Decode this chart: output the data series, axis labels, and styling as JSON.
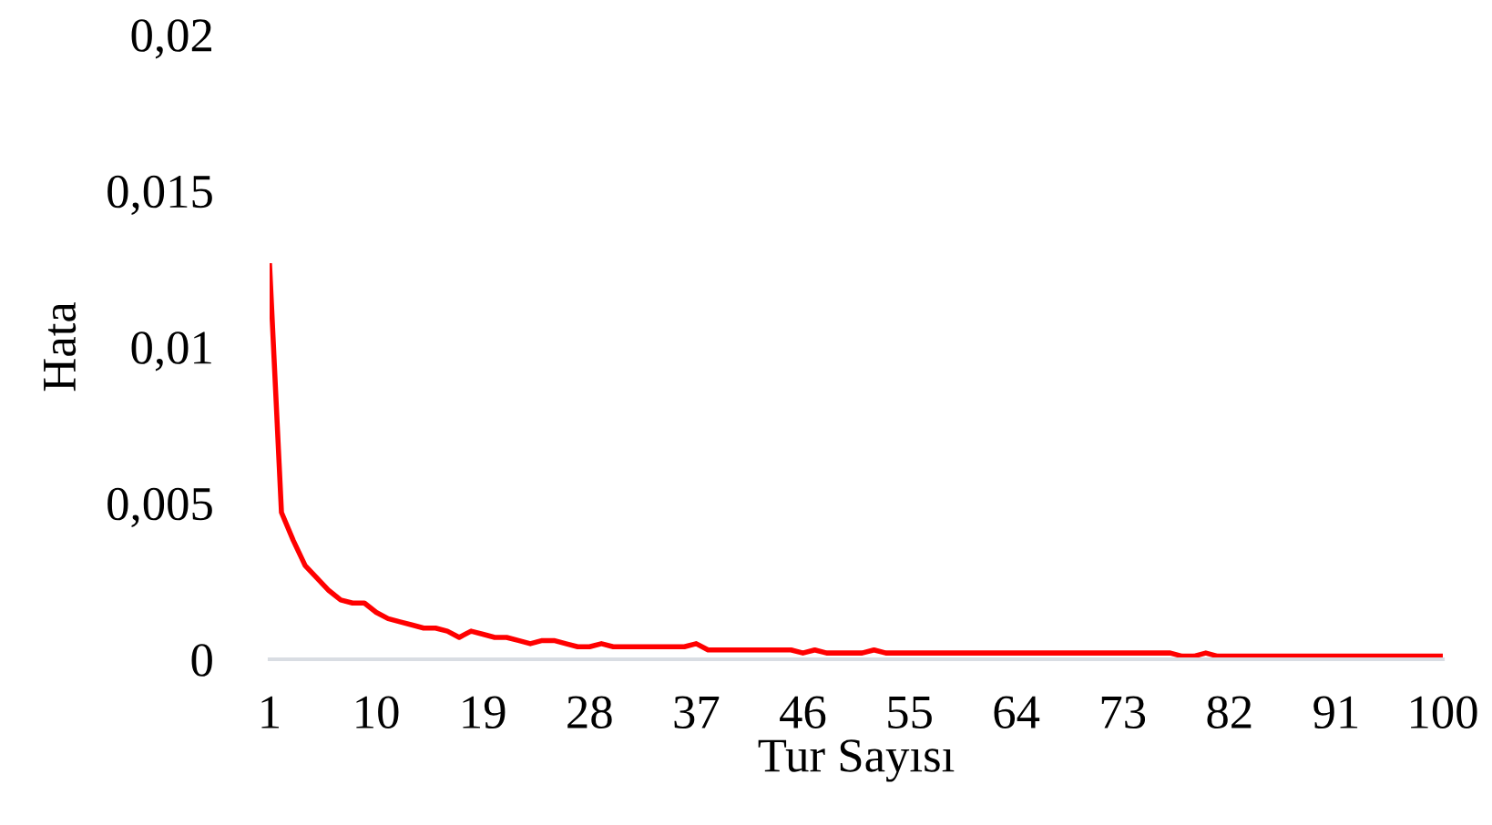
{
  "chart_data": {
    "type": "line",
    "xlabel": "Tur Sayısı",
    "ylabel": "Hata",
    "categories": [
      "1",
      null,
      null,
      null,
      null,
      null,
      null,
      null,
      null,
      "10",
      null,
      null,
      null,
      null,
      null,
      null,
      null,
      null,
      "19",
      null,
      null,
      null,
      null,
      null,
      null,
      null,
      null,
      "28",
      null,
      null,
      null,
      null,
      null,
      null,
      null,
      null,
      "37",
      null,
      null,
      null,
      null,
      null,
      null,
      null,
      null,
      "46",
      null,
      null,
      null,
      null,
      null,
      null,
      null,
      null,
      "55",
      null,
      null,
      null,
      null,
      null,
      null,
      null,
      null,
      "64",
      null,
      null,
      null,
      null,
      null,
      null,
      null,
      null,
      "73",
      null,
      null,
      null,
      null,
      null,
      null,
      null,
      null,
      "82",
      null,
      null,
      null,
      null,
      null,
      null,
      null,
      null,
      "91",
      null,
      null,
      null,
      null,
      null,
      null,
      null,
      null,
      "100"
    ],
    "series": [
      {
        "color": "#ff0000",
        "values": [
          0.0126,
          0.0047,
          0.0038,
          0.003,
          0.0026,
          0.0022,
          0.0019,
          0.0018,
          0.0018,
          0.0015,
          0.0013,
          0.0012,
          0.0011,
          0.001,
          0.001,
          0.0009,
          0.0007,
          0.0009,
          0.0008,
          0.0007,
          0.0007,
          0.0006,
          0.0005,
          0.0006,
          0.0006,
          0.0005,
          0.0004,
          0.0004,
          0.0005,
          0.0004,
          0.0004,
          0.0004,
          0.0004,
          0.0004,
          0.0004,
          0.0004,
          0.0005,
          0.0003,
          0.0003,
          0.0003,
          0.0003,
          0.0003,
          0.0003,
          0.0003,
          0.0003,
          0.0002,
          0.0003,
          0.0002,
          0.0002,
          0.0002,
          0.0002,
          0.0003,
          0.0002,
          0.0002,
          0.0002,
          0.0002,
          0.0002,
          0.0002,
          0.0002,
          0.0002,
          0.0002,
          0.0002,
          0.0002,
          0.0002,
          0.0002,
          0.0002,
          0.0002,
          0.0002,
          0.0002,
          0.0002,
          0.0002,
          0.0002,
          0.0002,
          0.0002,
          0.0002,
          0.0002,
          0.0002,
          0.0001,
          0.0001,
          0.0002,
          0.0001,
          0.0001,
          0.0001,
          0.0001,
          0.0001,
          0.0001,
          0.0001,
          0.0001,
          0.0001,
          0.0001,
          0.0001,
          0.0001,
          0.0001,
          0.0001,
          0.0001,
          0.0001,
          0.0001,
          0.0001,
          0.0001,
          0.0001
        ]
      }
    ],
    "ylim": [
      0,
      0.02
    ],
    "yticks": [
      {
        "value": 0,
        "label": "0"
      },
      {
        "value": 0.005,
        "label": "0,005"
      },
      {
        "value": 0.01,
        "label": "0,01"
      },
      {
        "value": 0.015,
        "label": "0,015"
      },
      {
        "value": 0.02,
        "label": "0,02"
      }
    ],
    "grid": false,
    "marker": "none",
    "line_style": "solid"
  }
}
